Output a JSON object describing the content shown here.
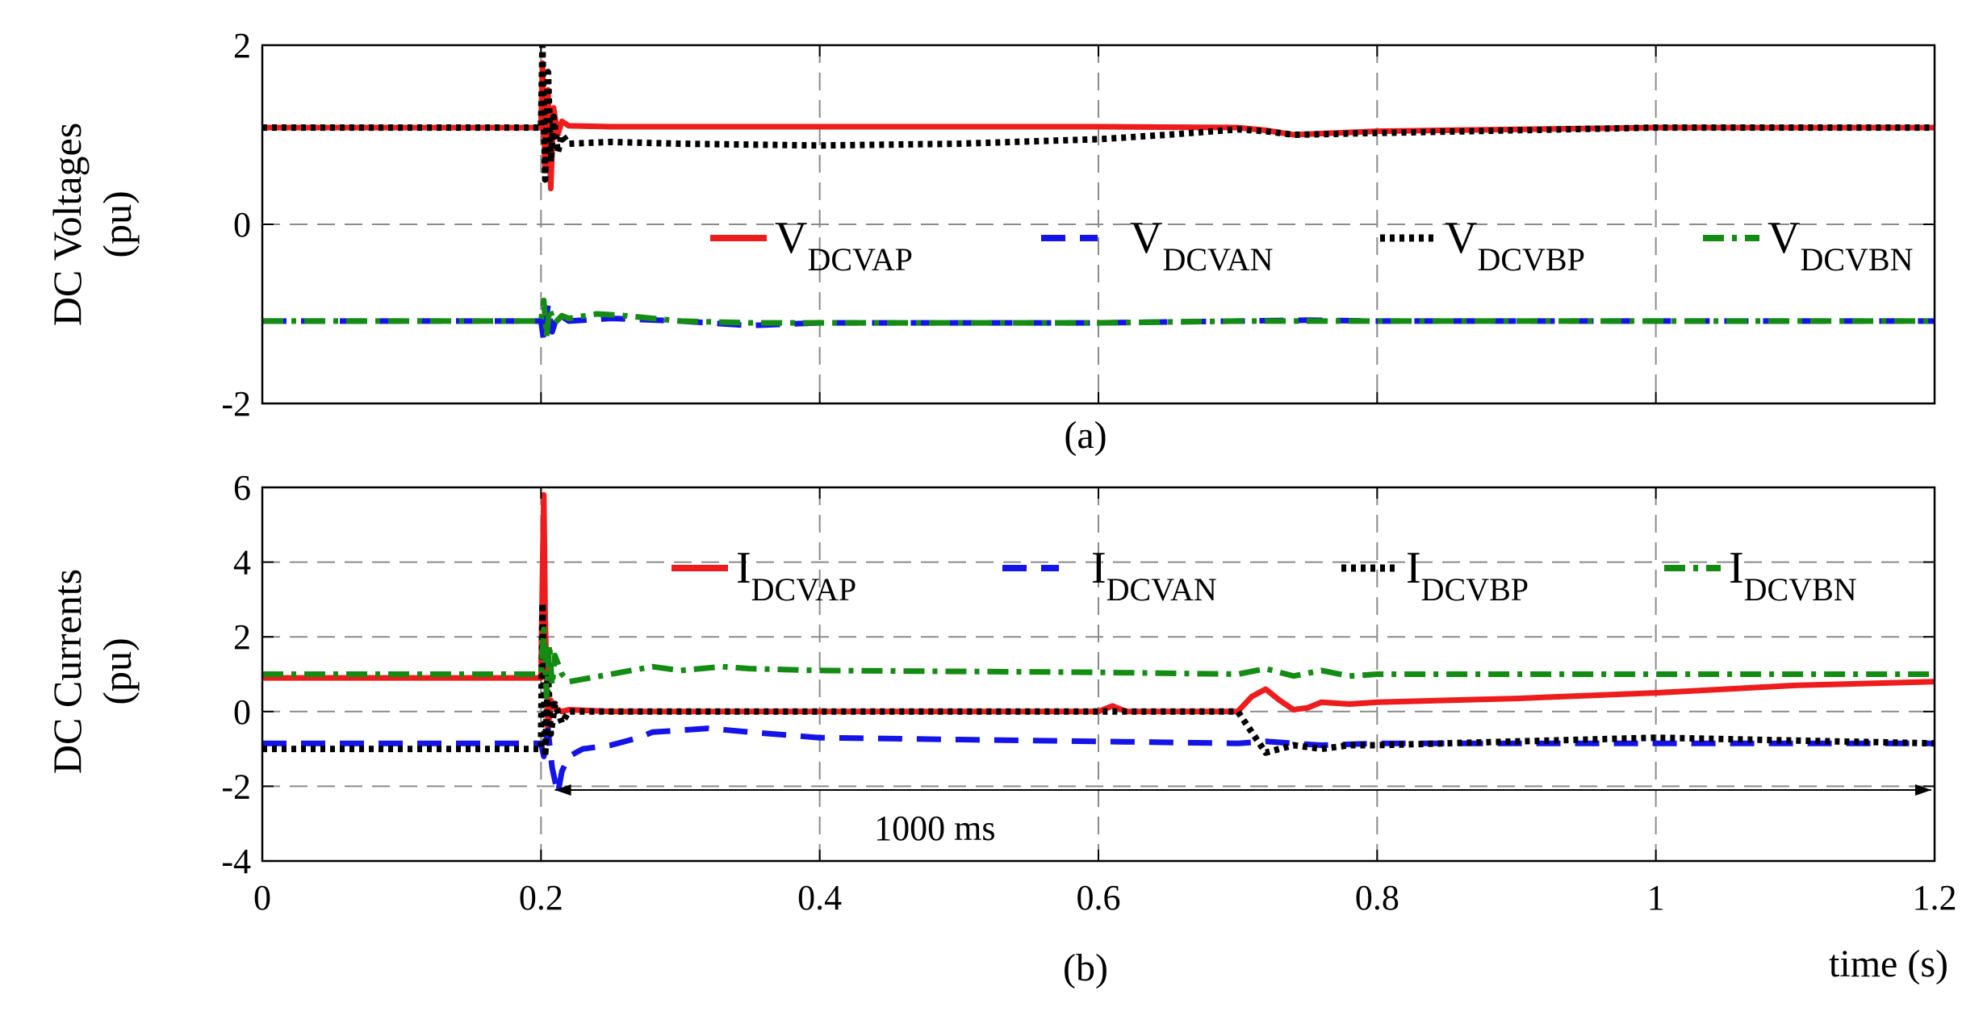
{
  "chart_data": [
    {
      "id": "a",
      "type": "line",
      "caption": "(a)",
      "ylabel": [
        "DC Voltages",
        "(pu)"
      ],
      "xlim": [
        0,
        1.2
      ],
      "ylim": [
        -2,
        2
      ],
      "xticks": [
        0,
        0.2,
        0.4,
        0.6,
        0.8,
        1,
        1.2
      ],
      "yticks": [
        -2,
        0,
        2
      ],
      "ytick_labels": [
        "-2",
        "0",
        "2"
      ],
      "show_x_tick_labels": false,
      "grid": true,
      "legend": {
        "placement": "center",
        "prefix": "V"
      },
      "series": [
        {
          "name": "V_DCVAP",
          "main": "V",
          "sub": "DCVAP",
          "color": "#ee1c1c",
          "style": "solid",
          "x": [
            0,
            0.2,
            0.201,
            0.203,
            0.205,
            0.207,
            0.209,
            0.212,
            0.215,
            0.22,
            0.25,
            0.4,
            0.6,
            0.7,
            0.72,
            0.74,
            0.8,
            1.0,
            1.2
          ],
          "y": [
            1.08,
            1.08,
            1.8,
            0.6,
            1.5,
            0.4,
            1.3,
            1.0,
            1.15,
            1.1,
            1.09,
            1.09,
            1.09,
            1.08,
            1.05,
            1.0,
            1.04,
            1.08,
            1.08
          ]
        },
        {
          "name": "V_DCVAN",
          "main": "V",
          "sub": "DCVAN",
          "color": "#1414e8",
          "style": "dash",
          "x": [
            0,
            0.2,
            0.202,
            0.205,
            0.208,
            0.212,
            0.22,
            0.25,
            0.3,
            0.35,
            0.4,
            0.6,
            0.7,
            0.75,
            0.8,
            1.0,
            1.2
          ],
          "y": [
            -1.08,
            -1.08,
            -1.3,
            -0.9,
            -1.2,
            -1.0,
            -1.08,
            -1.05,
            -1.08,
            -1.13,
            -1.1,
            -1.1,
            -1.08,
            -1.07,
            -1.08,
            -1.08,
            -1.08
          ]
        },
        {
          "name": "V_DCVBP",
          "main": "V",
          "sub": "DCVBP",
          "color": "#000000",
          "style": "dot",
          "x": [
            0,
            0.2,
            0.201,
            0.203,
            0.205,
            0.207,
            0.209,
            0.212,
            0.215,
            0.22,
            0.25,
            0.3,
            0.4,
            0.5,
            0.6,
            0.65,
            0.7,
            0.72,
            0.74,
            0.8,
            1.0,
            1.2
          ],
          "y": [
            1.08,
            1.08,
            2.0,
            0.5,
            1.7,
            0.7,
            1.2,
            0.8,
            1.0,
            0.9,
            0.92,
            0.9,
            0.88,
            0.9,
            0.95,
            1.0,
            1.06,
            1.04,
            1.0,
            1.02,
            1.08,
            1.08
          ]
        },
        {
          "name": "V_DCVBN",
          "main": "V",
          "sub": "DCVBN",
          "color": "#148c14",
          "style": "dashdot",
          "x": [
            0,
            0.2,
            0.202,
            0.204,
            0.206,
            0.21,
            0.215,
            0.22,
            0.24,
            0.26,
            0.3,
            0.35,
            0.4,
            0.6,
            0.7,
            0.8,
            1.0,
            1.2
          ],
          "y": [
            -1.08,
            -1.08,
            -0.85,
            -1.25,
            -0.95,
            -1.1,
            -1.02,
            -1.05,
            -1.0,
            -1.02,
            -1.08,
            -1.1,
            -1.1,
            -1.1,
            -1.08,
            -1.08,
            -1.08,
            -1.08
          ]
        }
      ]
    },
    {
      "id": "b",
      "type": "line",
      "caption": "(b)",
      "ylabel": [
        "DC Currents",
        "(pu)"
      ],
      "xlabel": "time (s)",
      "xlim": [
        0,
        1.2
      ],
      "ylim": [
        -4,
        6
      ],
      "xticks": [
        0,
        0.2,
        0.4,
        0.6,
        0.8,
        1,
        1.2
      ],
      "xtick_labels": [
        "0",
        "0.2",
        "0.4",
        "0.6",
        "0.8",
        "1",
        "1.2"
      ],
      "yticks": [
        -4,
        -2,
        0,
        2,
        4,
        6
      ],
      "ytick_labels": [
        "-4",
        "-2",
        "0",
        "2",
        "4",
        "6"
      ],
      "show_x_tick_labels": true,
      "grid": true,
      "legend": {
        "placement": "top-center",
        "prefix": "I"
      },
      "annotation": {
        "text": "1000 ms",
        "x_start": 0.21,
        "x_end": 1.2,
        "y": -2.1
      },
      "series": [
        {
          "name": "I_DCVAP",
          "main": "I",
          "sub": "DCVAP",
          "color": "#ee1c1c",
          "style": "solid",
          "x": [
            0,
            0.2,
            0.201,
            0.202,
            0.203,
            0.204,
            0.205,
            0.207,
            0.21,
            0.215,
            0.22,
            0.25,
            0.4,
            0.6,
            0.61,
            0.62,
            0.7,
            0.71,
            0.72,
            0.73,
            0.74,
            0.75,
            0.76,
            0.78,
            0.8,
            0.9,
            1.0,
            1.1,
            1.2
          ],
          "y": [
            0.9,
            0.9,
            3.5,
            5.8,
            2.5,
            1.0,
            -0.5,
            0.3,
            0.1,
            0,
            0.05,
            0,
            0,
            0,
            0.15,
            0,
            0,
            0.4,
            0.6,
            0.3,
            0.05,
            0.1,
            0.25,
            0.2,
            0.25,
            0.35,
            0.5,
            0.7,
            0.8
          ]
        },
        {
          "name": "I_DCVAN",
          "main": "I",
          "sub": "DCVAN",
          "color": "#1414e8",
          "style": "dash",
          "x": [
            0,
            0.2,
            0.202,
            0.205,
            0.208,
            0.212,
            0.215,
            0.22,
            0.23,
            0.25,
            0.27,
            0.28,
            0.3,
            0.32,
            0.35,
            0.4,
            0.5,
            0.6,
            0.7,
            0.72,
            0.74,
            0.76,
            0.8,
            1.0,
            1.2
          ],
          "y": [
            -0.85,
            -0.85,
            -1.2,
            -0.5,
            -1.5,
            -2.2,
            -1.6,
            -1.2,
            -1.0,
            -0.9,
            -0.7,
            -0.55,
            -0.5,
            -0.45,
            -0.55,
            -0.7,
            -0.75,
            -0.8,
            -0.85,
            -0.8,
            -0.85,
            -0.9,
            -0.85,
            -0.85,
            -0.85
          ]
        },
        {
          "name": "I_DCVBP",
          "main": "I",
          "sub": "DCVBP",
          "color": "#000000",
          "style": "dot",
          "x": [
            0,
            0.2,
            0.201,
            0.203,
            0.205,
            0.207,
            0.21,
            0.215,
            0.22,
            0.25,
            0.4,
            0.6,
            0.7,
            0.72,
            0.73,
            0.74,
            0.76,
            0.78,
            0.8,
            0.9,
            1.0,
            1.2
          ],
          "y": [
            -1.0,
            -1.0,
            2.9,
            -1.2,
            1.0,
            -0.6,
            0.2,
            -0.3,
            0,
            0,
            0,
            0,
            0,
            -1.1,
            -1.0,
            -0.9,
            -1.0,
            -0.9,
            -0.9,
            -0.8,
            -0.7,
            -0.85
          ]
        },
        {
          "name": "I_DCVBN",
          "main": "I",
          "sub": "DCVBN",
          "color": "#148c14",
          "style": "dashdot",
          "x": [
            0,
            0.2,
            0.202,
            0.204,
            0.206,
            0.208,
            0.21,
            0.215,
            0.22,
            0.25,
            0.28,
            0.3,
            0.33,
            0.35,
            0.4,
            0.6,
            0.7,
            0.72,
            0.74,
            0.76,
            0.78,
            0.8,
            1.0,
            1.2
          ],
          "y": [
            1.0,
            1.0,
            2.2,
            0.4,
            1.8,
            0.7,
            1.5,
            1.0,
            0.8,
            1.0,
            1.2,
            1.1,
            1.2,
            1.15,
            1.1,
            1.05,
            1.0,
            1.15,
            0.95,
            1.1,
            0.95,
            1.0,
            1.0,
            1.0
          ]
        }
      ]
    }
  ]
}
